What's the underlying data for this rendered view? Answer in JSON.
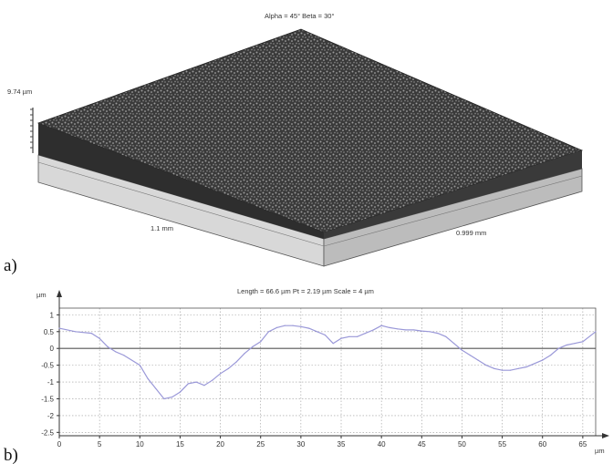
{
  "panel_a": {
    "label": "a)",
    "angles_text": "Alpha = 45°      Beta = 30°",
    "height_label": "9.74 µm",
    "x_extent_label": "1.1 mm",
    "y_extent_label": "0.999 mm"
  },
  "panel_b": {
    "label": "b)",
    "header_text": "Length = 66.6 µm  Pt = 2.19 µm  Scale = 4 µm"
  },
  "chart_data": {
    "type": "line",
    "title": "Length = 66.6 µm  Pt = 2.19 µm  Scale = 4 µm",
    "xlabel": "",
    "ylabel": "µm",
    "x_unit": "µm",
    "xlim": [
      0,
      66.6
    ],
    "ylim": [
      -2.6,
      1.2
    ],
    "x_ticks": [
      0,
      5,
      10,
      15,
      20,
      25,
      30,
      35,
      40,
      45,
      50,
      55,
      60,
      65
    ],
    "x_tick_labels": [
      "0",
      "5",
      "10",
      "15",
      "20",
      "25",
      "30",
      "35",
      "40",
      "45",
      "50",
      "55",
      "60",
      "65"
    ],
    "y_ticks": [
      1,
      0.5,
      0,
      -0.5,
      -1,
      -1.5,
      -2,
      -2.5
    ],
    "y_tick_labels": [
      "1",
      "0.5",
      "0",
      "-0.5",
      "-1",
      "-1.5",
      "-2",
      "-2.5"
    ],
    "grid": true,
    "zero_line": true,
    "line_color": "#9a98d8",
    "series": [
      {
        "x": [
          0,
          2,
          4,
          5,
          6,
          7,
          8,
          10,
          11,
          12,
          13,
          14,
          15,
          16,
          17,
          18,
          19,
          20,
          21,
          22,
          23,
          24,
          25,
          26,
          27,
          28,
          29,
          30,
          31,
          32,
          33,
          34,
          35,
          36,
          37,
          38,
          39,
          40,
          41,
          42,
          43,
          44,
          45,
          46,
          47,
          48,
          49,
          50,
          51,
          52,
          53,
          54,
          55,
          56,
          57,
          58,
          59,
          60,
          61,
          62,
          63,
          64,
          65,
          66.6
        ],
        "y": [
          0.6,
          0.5,
          0.45,
          0.3,
          0.05,
          -0.1,
          -0.2,
          -0.5,
          -0.9,
          -1.2,
          -1.5,
          -1.45,
          -1.3,
          -1.05,
          -1.0,
          -1.1,
          -0.95,
          -0.75,
          -0.6,
          -0.4,
          -0.15,
          0.05,
          0.2,
          0.5,
          0.62,
          0.68,
          0.68,
          0.65,
          0.6,
          0.5,
          0.4,
          0.15,
          0.3,
          0.35,
          0.35,
          0.45,
          0.55,
          0.68,
          0.62,
          0.58,
          0.55,
          0.55,
          0.52,
          0.5,
          0.45,
          0.35,
          0.15,
          -0.05,
          -0.2,
          -0.35,
          -0.5,
          -0.6,
          -0.65,
          -0.65,
          -0.6,
          -0.55,
          -0.45,
          -0.35,
          -0.2,
          0.0,
          0.1,
          0.15,
          0.2,
          0.5
        ]
      }
    ]
  }
}
